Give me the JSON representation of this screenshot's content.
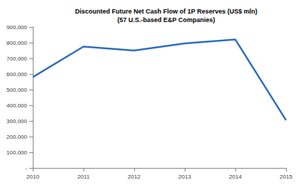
{
  "chart_data": {
    "type": "line",
    "title": "Discounted Future Net Cash Flow of 1P Reserves (US$ mln)\n(57 U.S.-based E&P Companies)",
    "categories": [
      "2010",
      "2011",
      "2012",
      "2013",
      "2014",
      "2015"
    ],
    "values": [
      580000,
      775000,
      750000,
      795000,
      820000,
      305000
    ],
    "color": "#2f6eba",
    "ylim": [
      0,
      900000
    ],
    "yticks": [
      {
        "value": 0,
        "label": "-"
      },
      {
        "value": 100000,
        "label": "100,000"
      },
      {
        "value": 200000,
        "label": "200,000"
      },
      {
        "value": 300000,
        "label": "300,000"
      },
      {
        "value": 400000,
        "label": "400,000"
      },
      {
        "value": 500000,
        "label": "500,000"
      },
      {
        "value": 600000,
        "label": "600,000"
      },
      {
        "value": 700000,
        "label": "700,000"
      },
      {
        "value": 800000,
        "label": "800,000"
      },
      {
        "value": 900000,
        "label": "900,000"
      }
    ],
    "grid": false
  }
}
